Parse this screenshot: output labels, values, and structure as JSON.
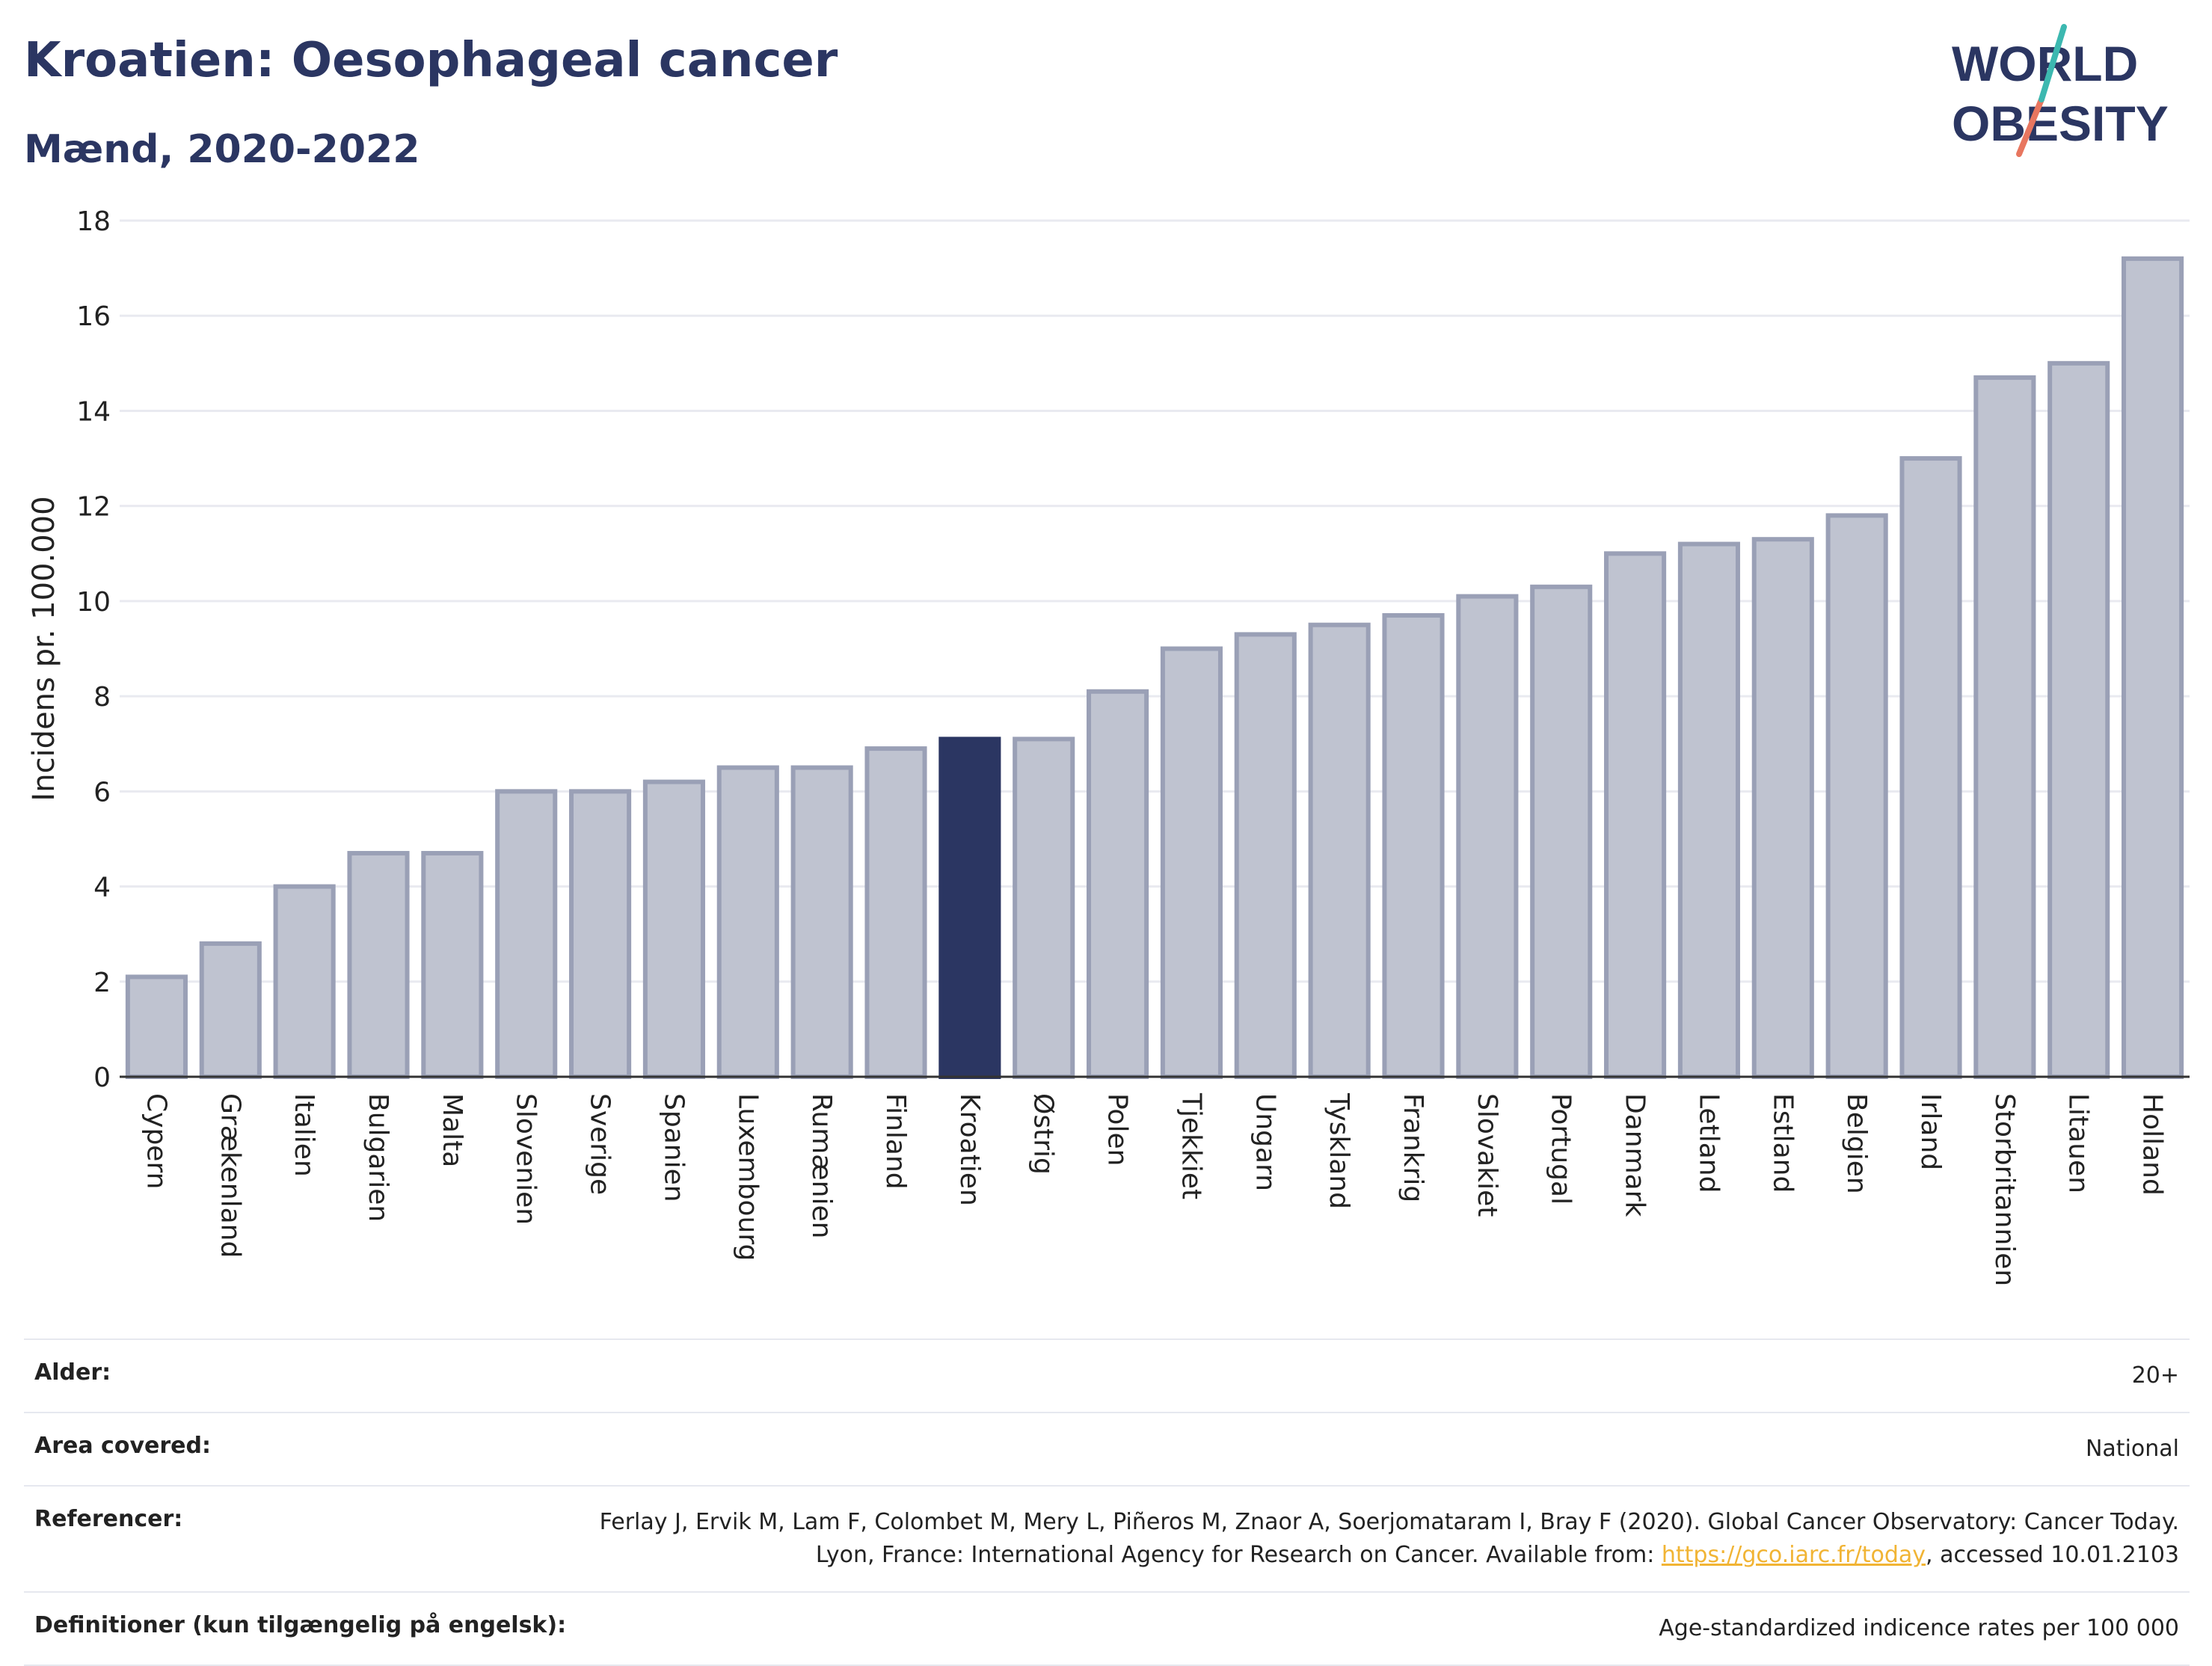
{
  "header": {
    "title": "Kroatien: Oesophageal cancer",
    "subtitle": "Mænd, 2020-2022"
  },
  "logo": {
    "line1": "WORLD",
    "line2": "OBESITY"
  },
  "chart_data": {
    "type": "bar",
    "ylabel": "Incidens pr. 100.000",
    "ylim": [
      0,
      18
    ],
    "yticks": [
      0,
      2,
      4,
      6,
      8,
      10,
      12,
      14,
      16,
      18
    ],
    "grid": true,
    "highlight": "Kroatien",
    "colors": {
      "bar": "#bfc3d0",
      "bar_border": "#9aa0b6",
      "highlight": "#2b3662",
      "grid": "#e9eaf0",
      "axis": "#333333"
    },
    "categories": [
      "Cypern",
      "Grækenland",
      "Italien",
      "Bulgarien",
      "Malta",
      "Slovenien",
      "Sverige",
      "Spanien",
      "Luxembourg",
      "Rumænien",
      "Finland",
      "Kroatien",
      "Østrig",
      "Polen",
      "Tjekkiet",
      "Ungarn",
      "Tyskland",
      "Frankrig",
      "Slovakiet",
      "Portugal",
      "Danmark",
      "Letland",
      "Estland",
      "Belgien",
      "Irland",
      "Storbritannien",
      "Litauen",
      "Holland"
    ],
    "values": [
      2.1,
      2.8,
      4.0,
      4.7,
      4.7,
      6.0,
      6.0,
      6.2,
      6.5,
      6.5,
      6.9,
      7.1,
      7.1,
      8.1,
      9.0,
      9.3,
      9.5,
      9.7,
      10.1,
      10.3,
      11.0,
      11.2,
      11.3,
      11.8,
      13.0,
      14.7,
      15.0,
      17.2
    ]
  },
  "meta": {
    "rows": [
      {
        "label": "Alder:",
        "value": "20+"
      },
      {
        "label": "Area covered:",
        "value": "National"
      },
      {
        "label": "Referencer:",
        "value_pre": "Ferlay J, Ervik M, Lam F, Colombet M, Mery L, Piñeros M, Znaor A, Soerjomataram I, Bray F (2020). Global Cancer Observatory: Cancer Today. Lyon, France: International Agency for Research on Cancer. Available from: ",
        "link": "https://gco.iarc.fr/today",
        "value_post": ", accessed 10.01.2103"
      },
      {
        "label": "Definitioner (kun tilgængelig på engelsk):",
        "value": "Age-standardized indicence rates per 100 000"
      }
    ]
  }
}
